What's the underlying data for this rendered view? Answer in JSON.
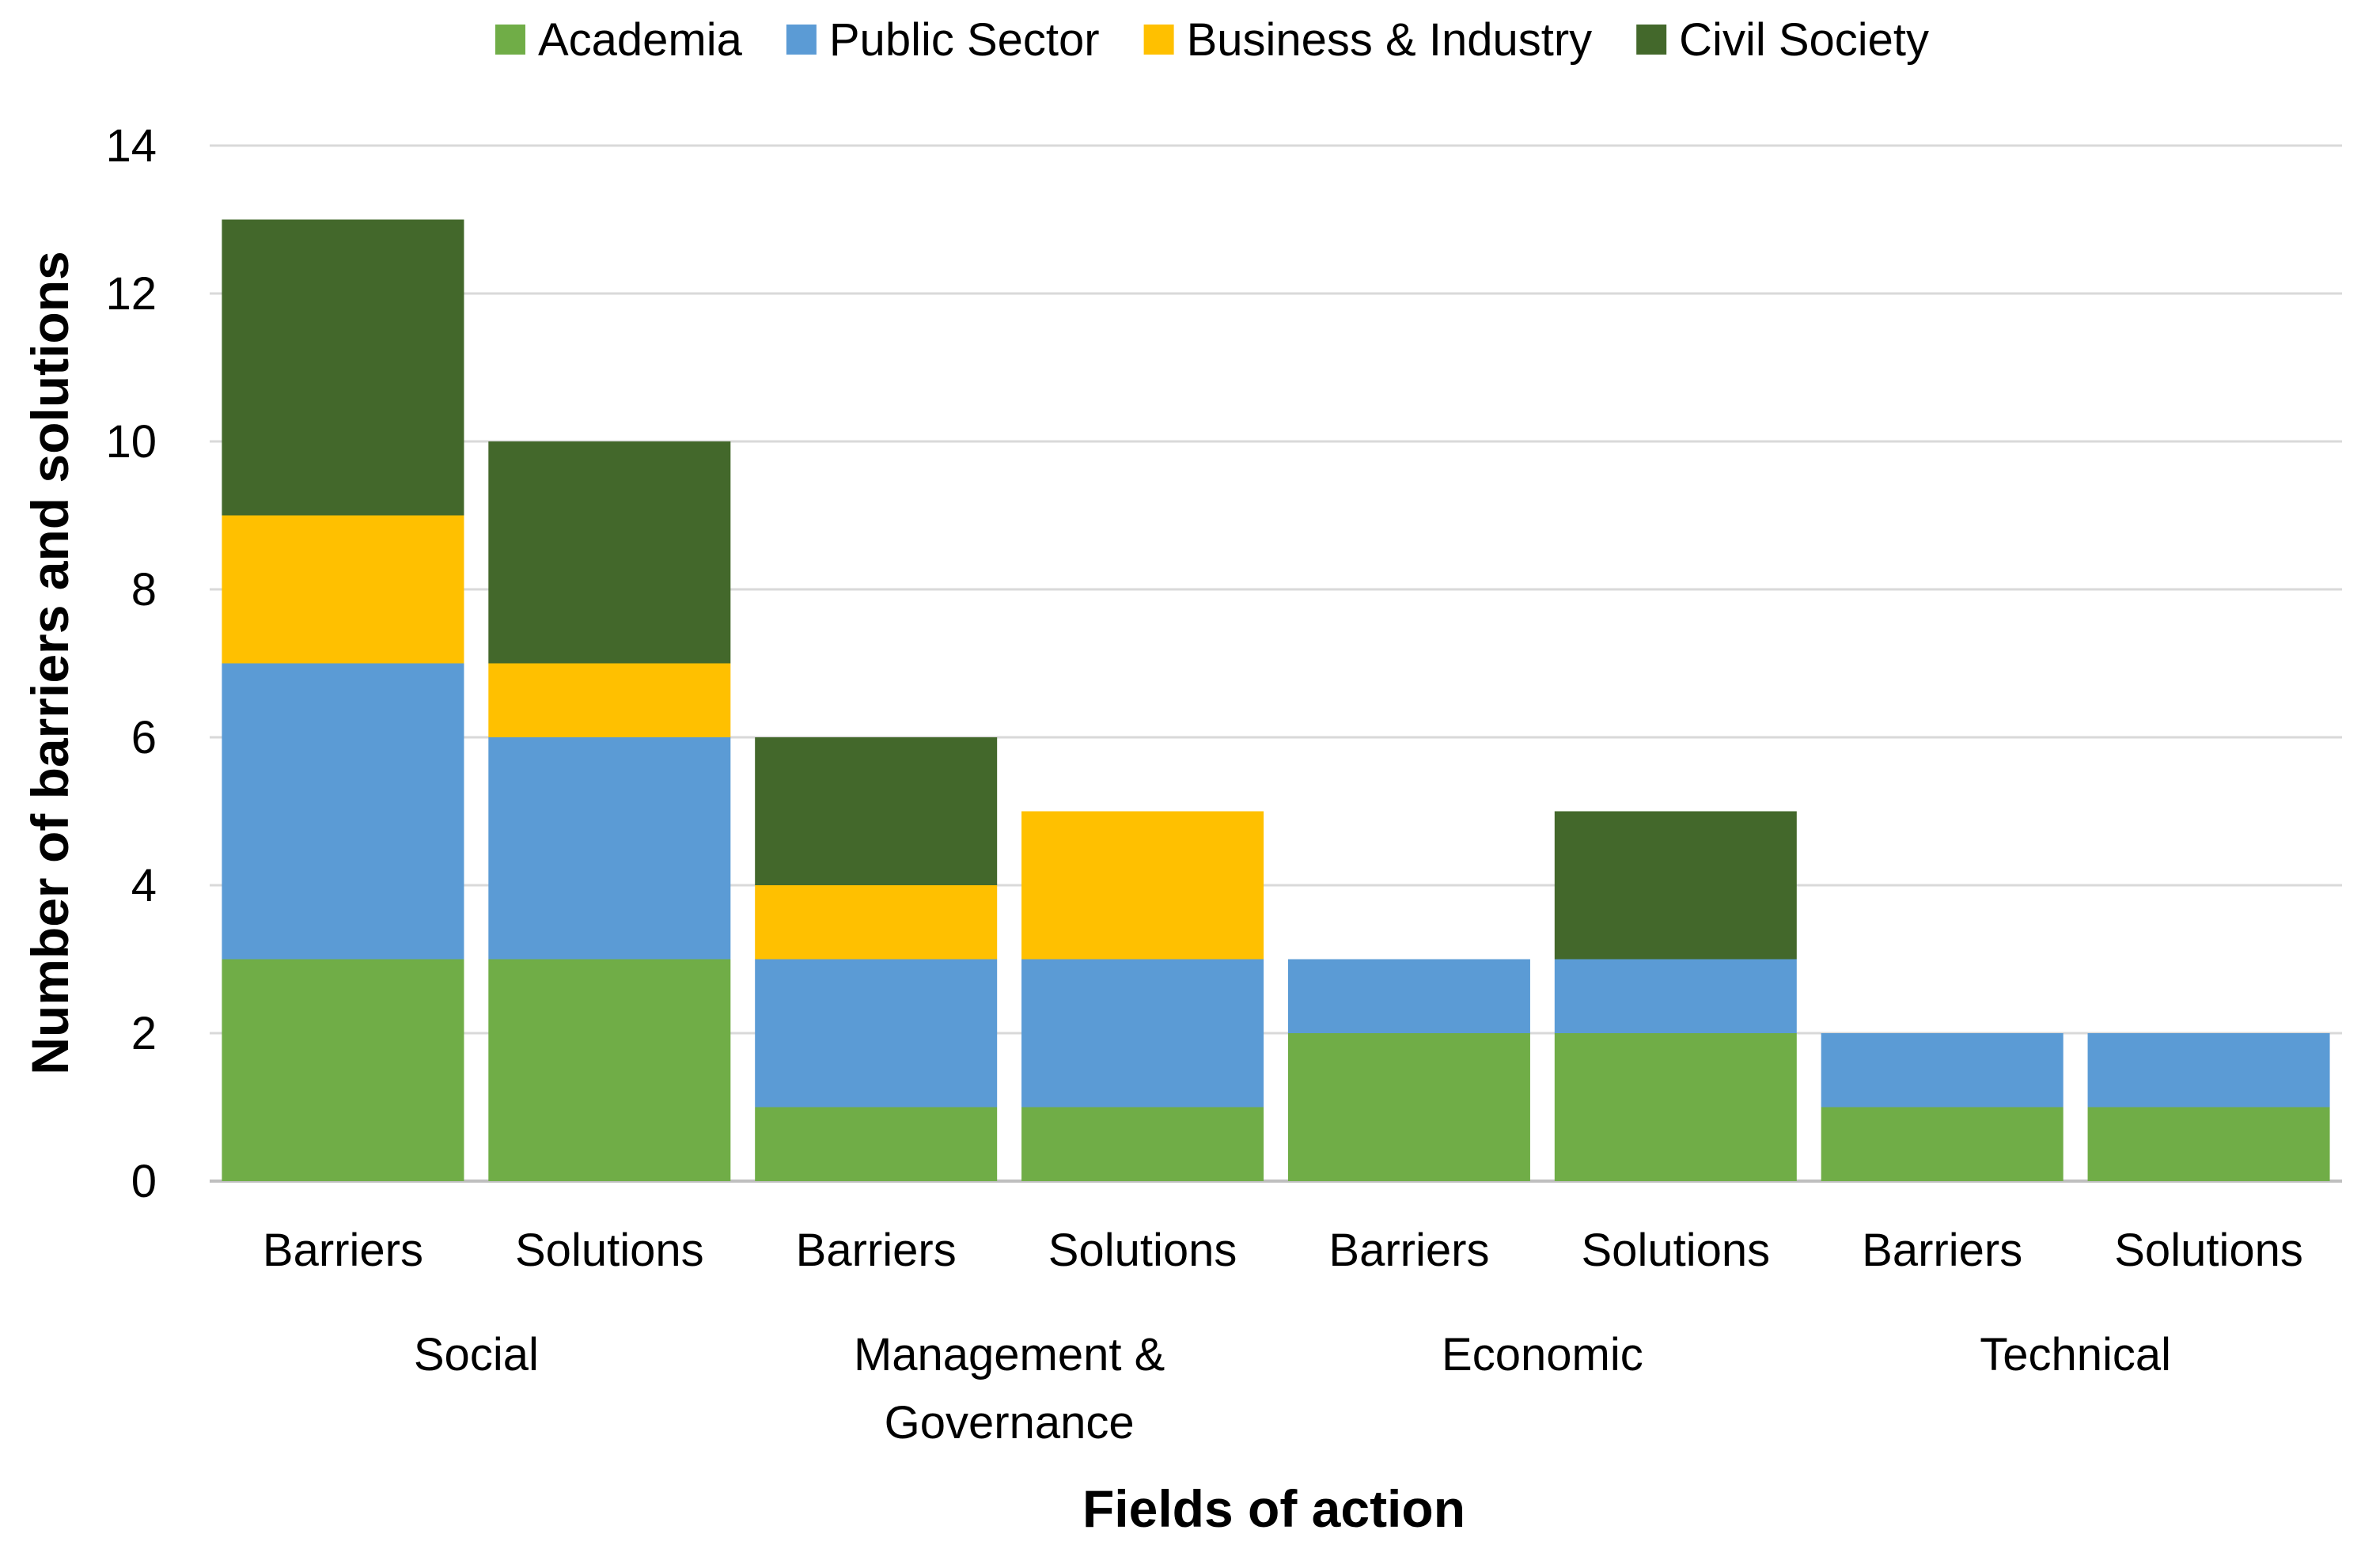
{
  "chart_data": {
    "type": "bar",
    "stacked": true,
    "title": "",
    "xlabel": "Fields of action",
    "ylabel": "Number of barriers and solutions",
    "ylim": [
      0,
      14
    ],
    "yticks": [
      0,
      2,
      4,
      6,
      8,
      10,
      12,
      14
    ],
    "grid": true,
    "legend_position": "top",
    "groups": [
      "Social",
      "Management & Governance",
      "Economic",
      "Technical"
    ],
    "categories": [
      "Barriers",
      "Solutions",
      "Barriers",
      "Solutions",
      "Barriers",
      "Solutions",
      "Barriers",
      "Solutions"
    ],
    "category_group": [
      0,
      0,
      1,
      1,
      2,
      2,
      3,
      3
    ],
    "series": [
      {
        "name": "Academia",
        "color": "#70ad47",
        "values": [
          3,
          3,
          1,
          1,
          2,
          2,
          1,
          1
        ]
      },
      {
        "name": "Public Sector",
        "color": "#5b9bd5",
        "values": [
          4,
          3,
          2,
          2,
          1,
          1,
          1,
          1
        ]
      },
      {
        "name": "Business & Industry",
        "color": "#ffc000",
        "values": [
          2,
          1,
          1,
          2,
          0,
          0,
          0,
          0
        ]
      },
      {
        "name": "Civil Society",
        "color": "#43682b",
        "values": [
          4,
          3,
          2,
          0,
          0,
          2,
          0,
          0
        ]
      }
    ]
  }
}
